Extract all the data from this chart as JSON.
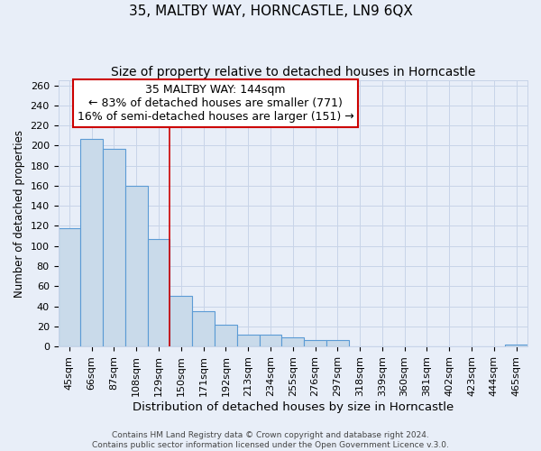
{
  "title": "35, MALTBY WAY, HORNCASTLE, LN9 6QX",
  "subtitle": "Size of property relative to detached houses in Horncastle",
  "xlabel": "Distribution of detached houses by size in Horncastle",
  "ylabel": "Number of detached properties",
  "bar_labels": [
    "45sqm",
    "66sqm",
    "87sqm",
    "108sqm",
    "129sqm",
    "150sqm",
    "171sqm",
    "192sqm",
    "213sqm",
    "234sqm",
    "255sqm",
    "276sqm",
    "297sqm",
    "318sqm",
    "339sqm",
    "360sqm",
    "381sqm",
    "402sqm",
    "423sqm",
    "444sqm",
    "465sqm"
  ],
  "bar_values": [
    118,
    207,
    197,
    160,
    107,
    50,
    35,
    22,
    12,
    12,
    9,
    6,
    6,
    0,
    0,
    0,
    0,
    0,
    0,
    0,
    2
  ],
  "bar_color": "#c9daea",
  "bar_edgecolor": "#5b9bd5",
  "bar_linewidth": 0.8,
  "vline_x_index": 5,
  "vline_color": "#cc0000",
  "annotation_line1": "35 MALTBY WAY: 144sqm",
  "annotation_line2": "← 83% of detached houses are smaller (771)",
  "annotation_line3": "16% of semi-detached houses are larger (151) →",
  "annotation_box_edgecolor": "#cc0000",
  "annotation_box_facecolor": "white",
  "ylim": [
    0,
    265
  ],
  "yticks": [
    0,
    20,
    40,
    60,
    80,
    100,
    120,
    140,
    160,
    180,
    200,
    220,
    240,
    260
  ],
  "grid_color": "#c8d4e8",
  "background_color": "#e8eef8",
  "footer_line1": "Contains HM Land Registry data © Crown copyright and database right 2024.",
  "footer_line2": "Contains public sector information licensed under the Open Government Licence v.3.0.",
  "title_fontsize": 11,
  "subtitle_fontsize": 10,
  "xlabel_fontsize": 9.5,
  "ylabel_fontsize": 8.5,
  "tick_fontsize": 8,
  "annotation_fontsize": 9,
  "footer_fontsize": 6.5
}
